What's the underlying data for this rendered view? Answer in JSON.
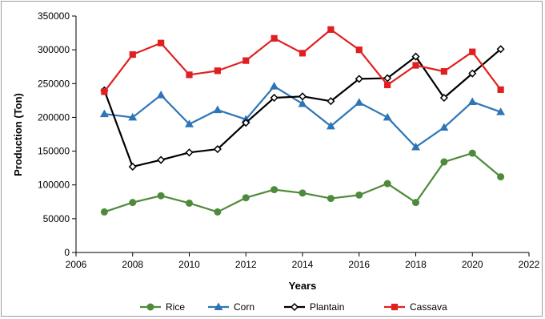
{
  "chart_data": {
    "type": "line",
    "xlabel": "Years",
    "ylabel": "Production (Ton)",
    "xlim": [
      2006,
      2022
    ],
    "ylim": [
      0,
      350000
    ],
    "xticks": [
      "2006",
      "2008",
      "2010",
      "2012",
      "2014",
      "2016",
      "2018",
      "2020",
      "2022"
    ],
    "yticks": [
      "0",
      "50000",
      "100000",
      "150000",
      "200000",
      "250000",
      "300000",
      "350000"
    ],
    "grid": false,
    "legend_position": "bottom",
    "x": [
      2007,
      2008,
      2009,
      2010,
      2011,
      2012,
      2013,
      2014,
      2015,
      2016,
      2017,
      2018,
      2019,
      2020,
      2021
    ],
    "series": [
      {
        "name": "Rice",
        "color": "#4f8a3c",
        "marker": "circle",
        "values": [
          60000,
          74000,
          84000,
          73000,
          60000,
          81000,
          93000,
          88000,
          80000,
          85000,
          102000,
          74000,
          134000,
          147000,
          112000
        ]
      },
      {
        "name": "Corn",
        "color": "#2e75b6",
        "marker": "triangle",
        "values": [
          205000,
          200000,
          233000,
          190000,
          211000,
          197000,
          246000,
          220000,
          187000,
          222000,
          200000,
          156000,
          185000,
          223000,
          208000
        ]
      },
      {
        "name": "Plantain",
        "color": "#000000",
        "marker": "diamond",
        "values": [
          240000,
          127000,
          137000,
          148000,
          153000,
          192000,
          229000,
          231000,
          224000,
          257000,
          258000,
          290000,
          229000,
          265000,
          301000
        ]
      },
      {
        "name": "Cassava",
        "color": "#e02020",
        "marker": "square",
        "values": [
          238000,
          293000,
          310000,
          263000,
          269000,
          284000,
          317000,
          295000,
          330000,
          300000,
          248000,
          277000,
          268000,
          297000,
          241000
        ]
      }
    ]
  }
}
